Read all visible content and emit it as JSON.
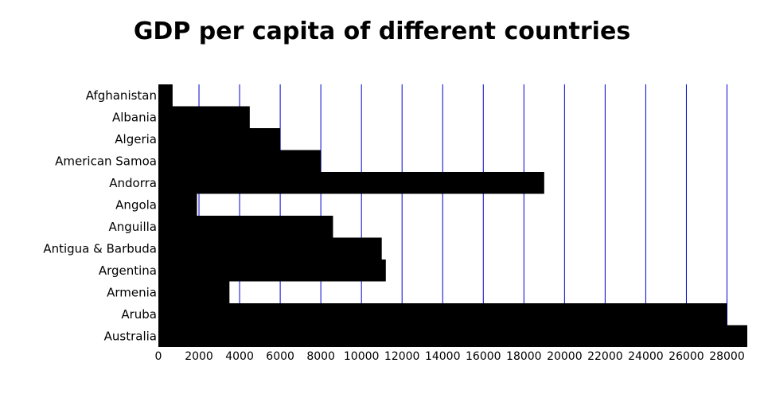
{
  "chart_data": {
    "type": "bar",
    "orientation": "horizontal",
    "title": "GDP per capita of different countries",
    "xlabel": "",
    "ylabel": "",
    "categories": [
      "Afghanistan",
      "Albania",
      "Algeria",
      "American Samoa",
      "Andorra",
      "Angola",
      "Anguilla",
      "Antigua & Barbuda",
      "Argentina",
      "Armenia",
      "Aruba",
      "Australia"
    ],
    "values": [
      700,
      4500,
      6000,
      8000,
      19000,
      1900,
      8600,
      11000,
      11200,
      3500,
      28000,
      29000
    ],
    "xlim": [
      0,
      29000
    ],
    "xticks": [
      0,
      2000,
      4000,
      6000,
      8000,
      10000,
      12000,
      14000,
      16000,
      18000,
      20000,
      22000,
      24000,
      26000,
      28000
    ],
    "grid": true,
    "bar_color": "#000000",
    "grid_color": "#0000cc"
  }
}
